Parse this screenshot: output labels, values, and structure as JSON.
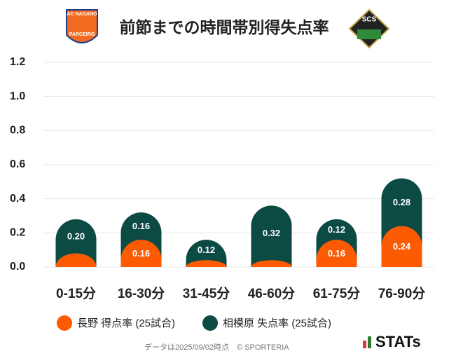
{
  "chart_data": {
    "type": "bar",
    "stacked": true,
    "title": "前節までの時間帯別得失点率",
    "logos": {
      "home_top": "AC NAGANO",
      "home_bottom": "PARCEIRO",
      "away": "SCS"
    },
    "categories": [
      "0-15分",
      "16-30分",
      "31-45分",
      "46-60分",
      "61-75分",
      "76-90分"
    ],
    "series": [
      {
        "name": "長野 得点率 (25試合)",
        "color": "#fc5a03",
        "values": [
          0.08,
          0.16,
          0.04,
          0.04,
          0.16,
          0.24
        ],
        "value_labels": [
          null,
          "0.16",
          null,
          null,
          "0.16",
          "0.24"
        ]
      },
      {
        "name": "相模原 失点率 (25試合)",
        "color": "#0c4a44",
        "values": [
          0.2,
          0.16,
          0.12,
          0.32,
          0.12,
          0.28
        ],
        "value_labels": [
          "0.20",
          "0.16",
          "0.12",
          "0.32",
          "0.12",
          "0.28"
        ]
      }
    ],
    "ylim": [
      0,
      1.2
    ],
    "yticks": [
      {
        "value": 0,
        "label": "0.0"
      },
      {
        "value": 0.2,
        "label": "0.2"
      },
      {
        "value": 0.4,
        "label": "0.4"
      },
      {
        "value": 0.6,
        "label": "0.6"
      },
      {
        "value": 0.8,
        "label": "0.8"
      },
      {
        "value": 1,
        "label": "1.0"
      },
      {
        "value": 1.2,
        "label": "1.2"
      }
    ],
    "grid": true,
    "footer": "データは2025/09/02時点　© SPORTERIA",
    "brand": "STATs"
  }
}
